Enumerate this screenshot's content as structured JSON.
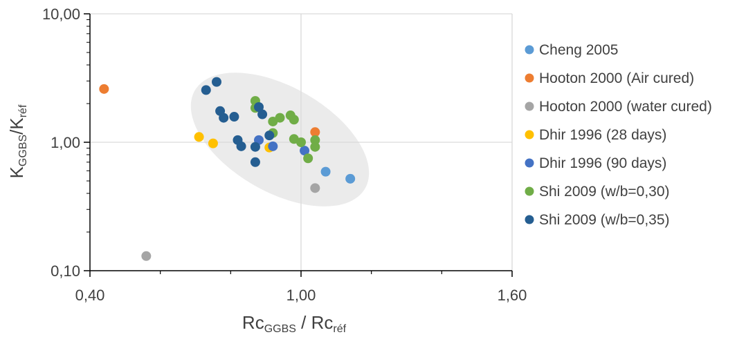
{
  "chart_data": {
    "type": "scatter",
    "x_axis": {
      "title_main": "Rc",
      "title_sub1": "GGBS",
      "title_mid": " / Rc",
      "title_sub2": "réf",
      "ticks": [
        0.4,
        1.0,
        1.6
      ],
      "tick_labels": [
        "0,40",
        "1,00",
        "1,60"
      ],
      "minor_ticks": [
        0.6,
        0.8,
        1.2,
        1.4
      ],
      "xlim": [
        0.4,
        1.6
      ]
    },
    "y_axis": {
      "title_main": "K",
      "title_sub1": "GGBS",
      "title_mid": "/K",
      "title_sub2": "réf",
      "scale": "log",
      "ticks": [
        0.1,
        1.0,
        10.0
      ],
      "tick_labels": [
        "0,10",
        "1,00",
        "10,00"
      ],
      "ylim": [
        0.1,
        10.0
      ]
    },
    "grid": "major",
    "legend_position": "right",
    "ellipse": {
      "center": [
        0.94,
        1.05
      ],
      "fill": "#ebebeb"
    },
    "series": [
      {
        "name": "Cheng 2005",
        "color": "#5b9bd5",
        "points": [
          [
            1.07,
            0.59
          ],
          [
            1.14,
            0.52
          ]
        ]
      },
      {
        "name": "Hooton 2000 (Air cured)",
        "color": "#ed7d31",
        "points": [
          [
            0.44,
            2.6
          ],
          [
            1.04,
            1.2
          ]
        ]
      },
      {
        "name": "Hooton 2000 (water cured)",
        "color": "#a5a5a5",
        "points": [
          [
            0.56,
            0.13
          ],
          [
            1.04,
            0.44
          ]
        ]
      },
      {
        "name": "Dhir 1996 (28 days)",
        "color": "#ffc000",
        "points": [
          [
            0.71,
            1.1
          ],
          [
            0.75,
            0.98
          ],
          [
            0.91,
            0.91
          ]
        ]
      },
      {
        "name": "Dhir 1996 (90 days)",
        "color": "#4472c4",
        "points": [
          [
            0.88,
            1.04
          ],
          [
            0.92,
            0.93
          ],
          [
            1.01,
            0.86
          ]
        ]
      },
      {
        "name": "Shi 2009 (w/b=0,30)",
        "color": "#70ad47",
        "points": [
          [
            0.87,
            2.1
          ],
          [
            0.87,
            1.85
          ],
          [
            0.92,
            1.45
          ],
          [
            0.94,
            1.55
          ],
          [
            0.92,
            1.18
          ],
          [
            0.97,
            1.62
          ],
          [
            0.98,
            1.5
          ],
          [
            0.98,
            1.06
          ],
          [
            1.0,
            1.0
          ],
          [
            1.02,
            0.75
          ],
          [
            1.04,
            1.04
          ],
          [
            1.04,
            0.92
          ]
        ]
      },
      {
        "name": "Shi 2009 (w/b=0,35)",
        "color": "#255e91",
        "points": [
          [
            0.73,
            2.55
          ],
          [
            0.76,
            2.95
          ],
          [
            0.77,
            1.75
          ],
          [
            0.78,
            1.55
          ],
          [
            0.81,
            1.58
          ],
          [
            0.82,
            1.04
          ],
          [
            0.83,
            0.93
          ],
          [
            0.87,
            0.92
          ],
          [
            0.87,
            0.7
          ],
          [
            0.88,
            1.88
          ],
          [
            0.89,
            1.65
          ],
          [
            0.91,
            1.13
          ]
        ]
      }
    ]
  }
}
